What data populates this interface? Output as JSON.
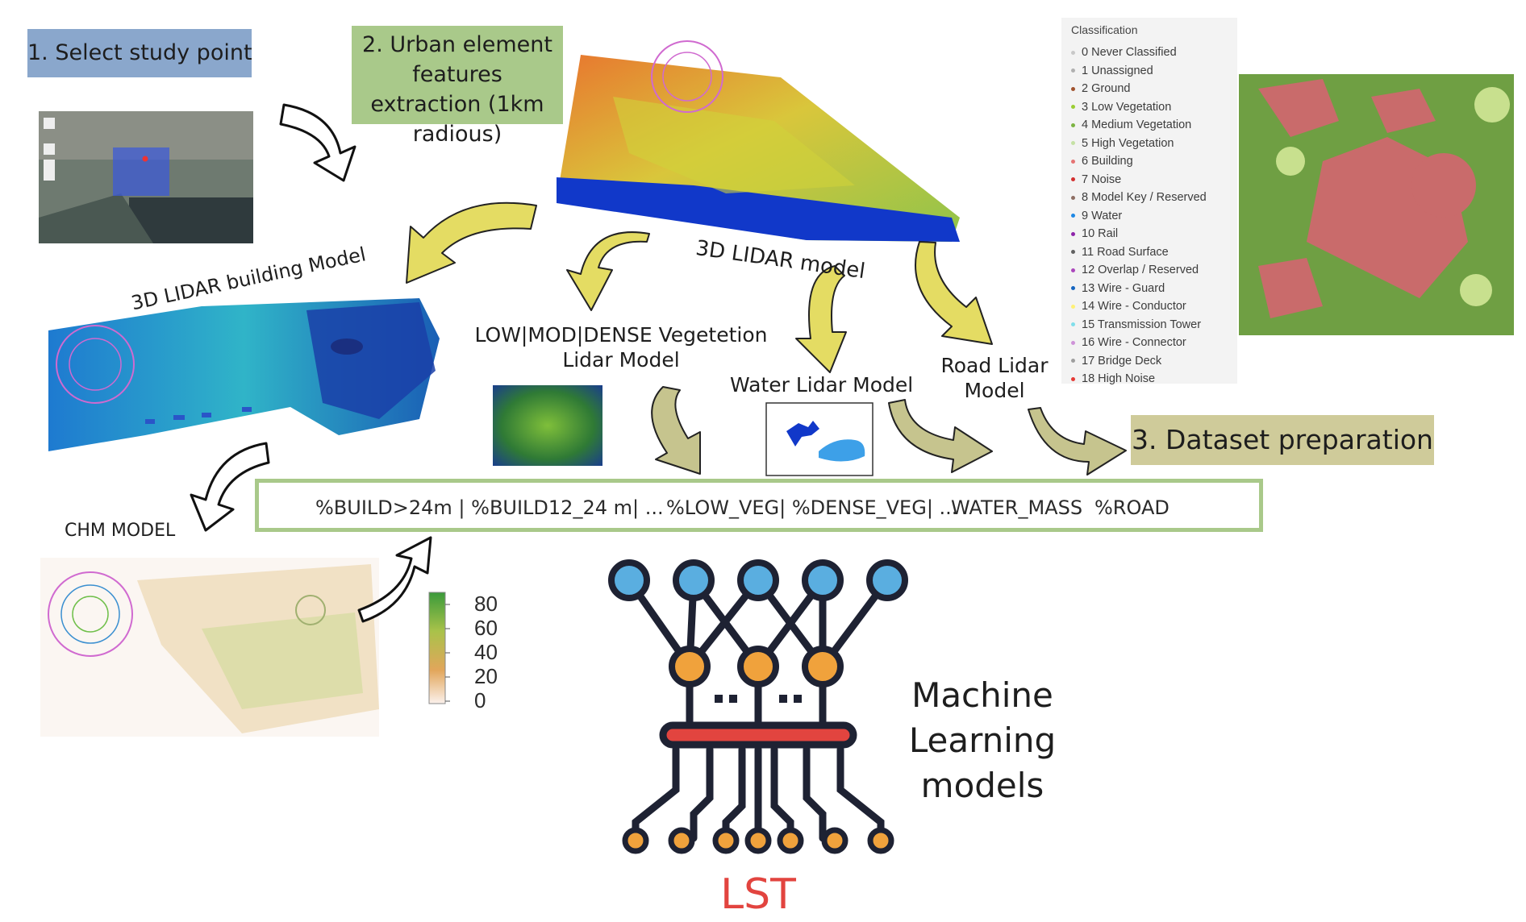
{
  "steps": {
    "step1": "1. Select study point",
    "step2": "2. Urban element features extraction (1km radious)",
    "step3": "3. Dataset preparation"
  },
  "labels": {
    "lidar_3d": "3D LIDAR model",
    "building_model": "3D LIDAR building Model",
    "vegetation_model": "LOW|MOD|DENSE Vegetetion Lidar Model",
    "water_model": "Water Lidar Model",
    "road_model": "Road Lidar Model",
    "chm_model": "CHM MODEL",
    "ml_models": "Machine Learning models",
    "lst": "LST"
  },
  "features": [
    "%BUILD>24m | %BUILD12_24 m| ...",
    "%LOW_VEG| %DENSE_VEG| ...",
    "WATER_MASS",
    "%ROAD"
  ],
  "colorbar": {
    "ticks": [
      "80",
      "60",
      "40",
      "20",
      "0"
    ]
  },
  "classification_legend": {
    "title": "Classification",
    "items": [
      {
        "label": "0  Never Classified",
        "color": "#c8c8c8"
      },
      {
        "label": "1  Unassigned",
        "color": "#b0b0b0"
      },
      {
        "label": "2  Ground",
        "color": "#a0522d"
      },
      {
        "label": "3  Low Vegetation",
        "color": "#9acd32"
      },
      {
        "label": "4  Medium Vegetation",
        "color": "#7cb342"
      },
      {
        "label": "5  High Vegetation",
        "color": "#c5e1a5"
      },
      {
        "label": "6  Building",
        "color": "#e57373"
      },
      {
        "label": "7  Noise",
        "color": "#d32f2f"
      },
      {
        "label": "8  Model Key / Reserved",
        "color": "#8d6e63"
      },
      {
        "label": "9  Water",
        "color": "#1e88e5"
      },
      {
        "label": "10 Rail",
        "color": "#8e24aa"
      },
      {
        "label": "11  Road Surface",
        "color": "#616161"
      },
      {
        "label": "12  Overlap / Reserved",
        "color": "#ab47bc"
      },
      {
        "label": "13  Wire - Guard",
        "color": "#1565c0"
      },
      {
        "label": "14  Wire - Conductor",
        "color": "#fff176"
      },
      {
        "label": "15  Transmission Tower",
        "color": "#80deea"
      },
      {
        "label": "16  Wire - Connector",
        "color": "#ce93d8"
      },
      {
        "label": "17  Bridge Deck",
        "color": "#9e9e9e"
      },
      {
        "label": "18  High Noise",
        "color": "#e53935"
      }
    ]
  },
  "colors": {
    "step1_bg": "#8aa7cc",
    "step2_bg": "#a9c98a",
    "step3_bg": "#cfcb9a",
    "arrow_fill": "#e4dc63",
    "arrow_fill_olive": "#c6c48e",
    "node_blue": "#5aaee0",
    "node_orange": "#f0a23c",
    "bar_red": "#e2443f",
    "lst_red": "#e2443f"
  }
}
